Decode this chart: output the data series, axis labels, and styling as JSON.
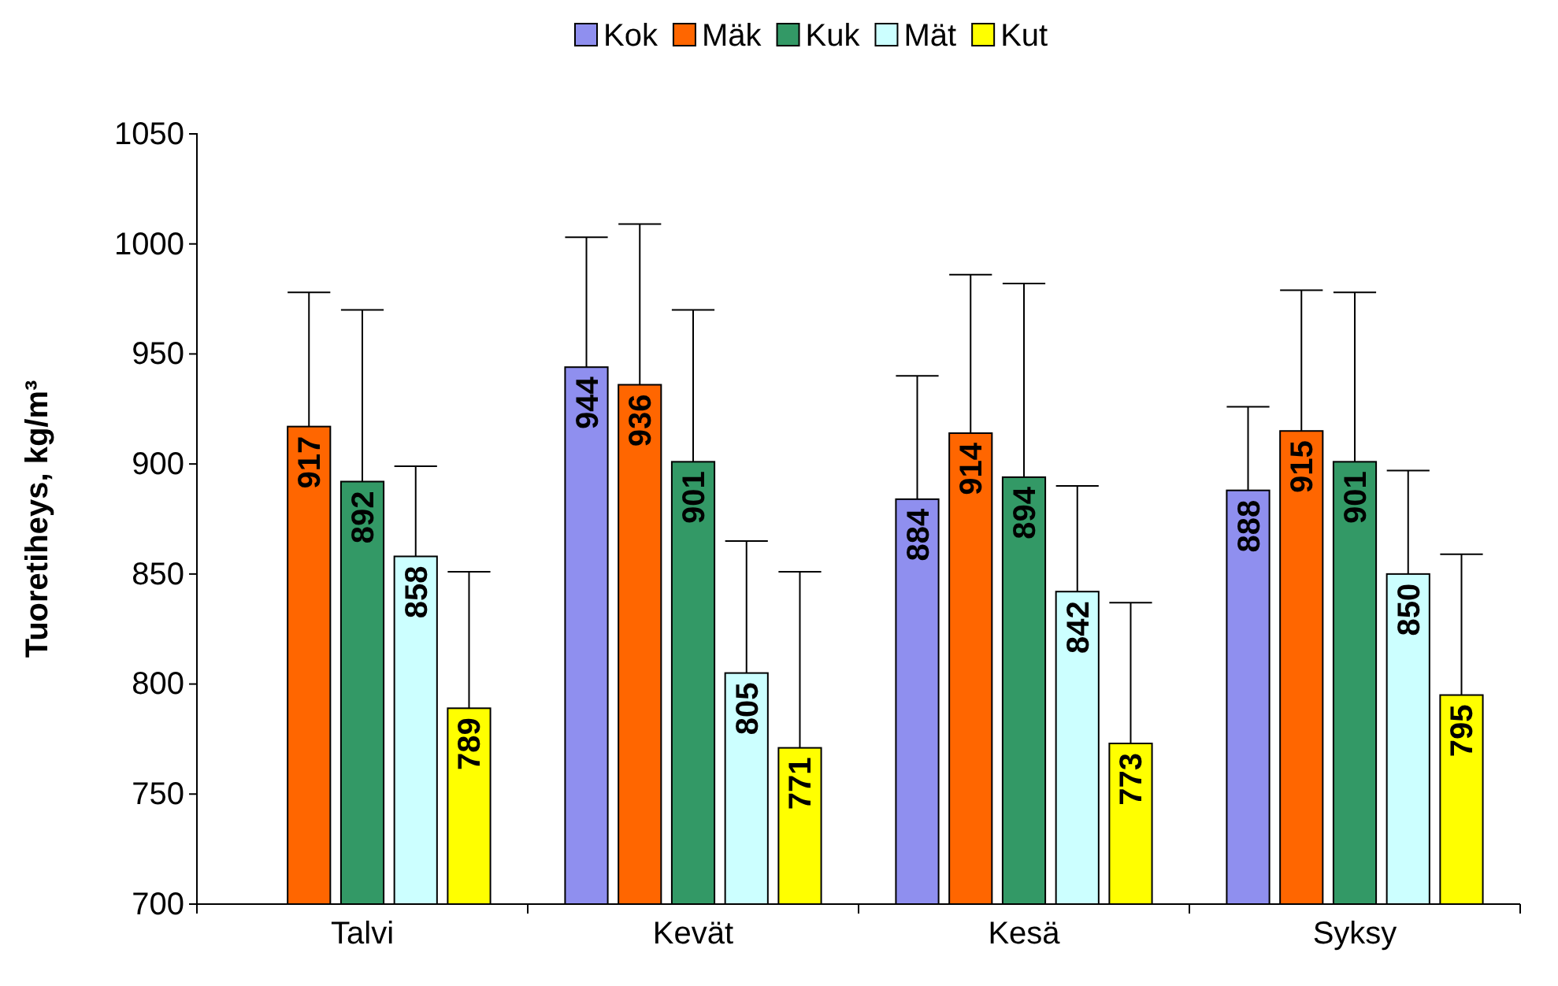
{
  "chart_data": {
    "type": "bar",
    "ylabel": "Tuoretiheys, kg/m³",
    "categories": [
      "Talvi",
      "Kevät",
      "Kesä",
      "Syksy"
    ],
    "ylim": [
      700,
      1050
    ],
    "yticks": [
      700,
      750,
      800,
      850,
      900,
      950,
      1000,
      1050
    ],
    "grid": false,
    "legend": "top",
    "data_labels": true,
    "series": [
      {
        "name": "Kok",
        "color": "#8f8fef",
        "values": [
          null,
          944,
          884,
          888
        ],
        "errors": [
          null,
          [
            944,
            1003
          ],
          [
            884,
            940
          ],
          [
            888,
            926
          ]
        ]
      },
      {
        "name": "Mäk",
        "color": "#ff6600",
        "values": [
          917,
          936,
          914,
          915
        ],
        "errors": [
          [
            917,
            978
          ],
          [
            936,
            1009
          ],
          [
            914,
            986
          ],
          [
            915,
            979
          ]
        ]
      },
      {
        "name": "Kuk",
        "color": "#339966",
        "values": [
          892,
          901,
          894,
          901
        ],
        "errors": [
          [
            892,
            970
          ],
          [
            901,
            970
          ],
          [
            894,
            982
          ],
          [
            901,
            978
          ]
        ]
      },
      {
        "name": "Mät",
        "color": "#ccffff",
        "values": [
          858,
          805,
          842,
          850
        ],
        "errors": [
          [
            858,
            899
          ],
          [
            805,
            865
          ],
          [
            842,
            890
          ],
          [
            850,
            897
          ]
        ]
      },
      {
        "name": "Kut",
        "color": "#ffff00",
        "values": [
          789,
          771,
          773,
          795
        ],
        "errors": [
          [
            789,
            851
          ],
          [
            771,
            851
          ],
          [
            773,
            837
          ],
          [
            795,
            859
          ]
        ]
      }
    ]
  }
}
